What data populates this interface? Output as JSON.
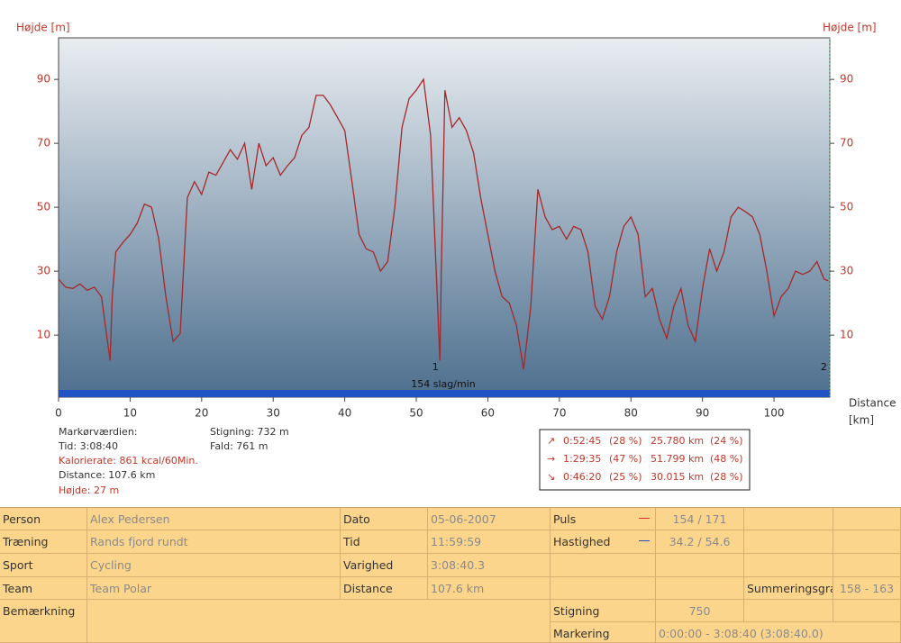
{
  "chart_data": {
    "type": "line",
    "y_label": "Højde [m]",
    "y2_label": "Højde [m]",
    "x_label": "Distance",
    "x_unit": "[km]",
    "color": "#a5282a",
    "x": [
      0,
      1,
      2,
      3,
      4,
      5,
      6,
      7.2,
      7.5,
      8,
      9,
      10,
      11,
      12,
      13,
      14,
      15,
      16,
      17,
      18,
      19,
      20,
      21,
      22,
      23,
      24,
      25,
      26,
      27,
      28,
      29,
      30,
      31,
      32,
      33,
      34,
      35,
      36,
      37,
      38,
      39,
      40,
      41,
      42,
      43,
      44,
      45,
      46,
      47,
      48,
      49,
      50,
      51,
      52,
      53.3,
      53.5,
      54,
      55,
      56,
      57,
      58,
      59,
      60,
      61,
      62,
      63,
      64,
      65,
      66,
      67,
      68,
      69,
      70,
      71,
      72,
      73,
      74,
      75,
      76,
      77,
      78,
      79,
      80,
      81,
      82,
      83,
      84,
      85,
      86,
      87,
      88,
      89,
      90,
      91,
      92,
      93,
      94,
      95,
      96,
      97,
      98,
      99,
      100,
      101,
      102,
      103,
      104,
      105,
      106,
      107,
      107.6
    ],
    "values": [
      27.5,
      25,
      24.6,
      26,
      24,
      25,
      22,
      2,
      22,
      36,
      39,
      41.5,
      45,
      51,
      50,
      40,
      22,
      8,
      10.5,
      53,
      58,
      54,
      61,
      60,
      64,
      68,
      65,
      70,
      55.6,
      70,
      63,
      65.5,
      60,
      63,
      65.5,
      72.5,
      75,
      85,
      85,
      82,
      78,
      74,
      58,
      41.5,
      37,
      36,
      30,
      33,
      50,
      75,
      84,
      86.6,
      90,
      72.5,
      2,
      30,
      86.6,
      75,
      78,
      74,
      67,
      53,
      41.5,
      30,
      22,
      20,
      13,
      -0.7,
      19,
      55.6,
      47,
      43,
      44,
      40,
      44,
      43,
      36,
      19,
      15,
      22,
      36,
      44,
      47,
      41.5,
      22,
      24.6,
      15,
      9,
      19,
      24.6,
      13,
      8,
      24.6,
      37,
      30,
      36,
      47,
      50,
      48.6,
      47,
      41.5,
      30,
      16,
      22,
      24.6,
      30,
      29,
      30,
      33,
      27.5,
      27
    ],
    "xlim": [
      0,
      107.8
    ],
    "xticks": [
      0,
      10,
      20,
      30,
      40,
      50,
      60,
      70,
      80,
      90,
      100
    ],
    "ylim": [
      -9.4,
      103
    ],
    "yticks": [
      10,
      30,
      50,
      70,
      90
    ],
    "band_label": "154 slag/min",
    "markers": [
      {
        "label": "1",
        "x": 53.3
      },
      {
        "label": "2",
        "x": 107.6
      }
    ]
  },
  "cursor_info": {
    "title": "Markørværdien:",
    "time": "Tid: 3:08:40",
    "calories": "Kalorierate: 861 kcal/60Min.",
    "distance": "Distance: 107.6 km",
    "height": "Højde: 27 m",
    "climb": "Stigning: 732 m",
    "fall": "Fald: 761 m"
  },
  "summary_box": {
    "rows": [
      [
        "↗",
        "0:52:45",
        "(28 %)",
        "25.780 km",
        "(24 %)"
      ],
      [
        "→",
        "1:29:35",
        "(47 %)",
        "51.799 km",
        "(48 %)"
      ],
      [
        "↘",
        "0:46:20",
        "(25 %)",
        "30.015 km",
        "(28 %)"
      ]
    ]
  },
  "table": {
    "rows": [
      [
        "Person",
        "Alex  Pedersen",
        "Dato",
        "05-06-2007",
        "Puls",
        "154 / 171"
      ],
      [
        "Træning",
        "Rands fjord rundt",
        "Tid",
        "11:59:59",
        "Hastighed",
        "34.2 / 54.6"
      ],
      [
        "Sport",
        "Cycling",
        "Varighed",
        "3:08:40.3"
      ],
      [
        "Team",
        "Team Polar",
        "Distance",
        "107.6 km",
        "Summeringsgra",
        "158 - 163"
      ],
      [
        "Bemærkning",
        "Stigning",
        "750"
      ],
      [
        "Markering",
        "0:00:00 - 3:08:40 (3:08:40.0)"
      ]
    ]
  }
}
